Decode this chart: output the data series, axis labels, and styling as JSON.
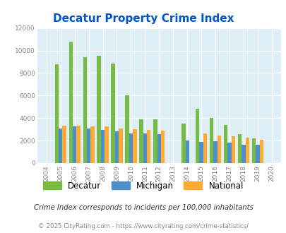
{
  "title": "Decatur Property Crime Index",
  "years": [
    2004,
    2005,
    2006,
    2007,
    2008,
    2009,
    2010,
    2011,
    2012,
    2013,
    2014,
    2015,
    2016,
    2017,
    2018,
    2019,
    2020
  ],
  "decatur": [
    0,
    8750,
    10800,
    9400,
    9500,
    8850,
    6000,
    3900,
    3900,
    0,
    3500,
    4800,
    4000,
    3400,
    2600,
    2200,
    0
  ],
  "michigan": [
    0,
    3050,
    3250,
    3050,
    2950,
    2800,
    2650,
    2650,
    2550,
    0,
    2000,
    1900,
    1950,
    1800,
    1600,
    1600,
    0
  ],
  "national": [
    0,
    3350,
    3300,
    3250,
    3250,
    3050,
    3000,
    2950,
    2900,
    0,
    0,
    2650,
    2450,
    2400,
    2250,
    2100,
    0
  ],
  "decatur_color": "#77bb44",
  "michigan_color": "#4d8fcc",
  "national_color": "#ffaa33",
  "bg_color": "#ddeef5",
  "title_color": "#0055cc",
  "ylim": [
    0,
    12000
  ],
  "yticks": [
    0,
    2000,
    4000,
    6000,
    8000,
    10000,
    12000
  ],
  "subtitle": "Crime Index corresponds to incidents per 100,000 inhabitants",
  "footer": "© 2025 CityRating.com - https://www.cityrating.com/crime-statistics/",
  "bar_width": 0.27
}
